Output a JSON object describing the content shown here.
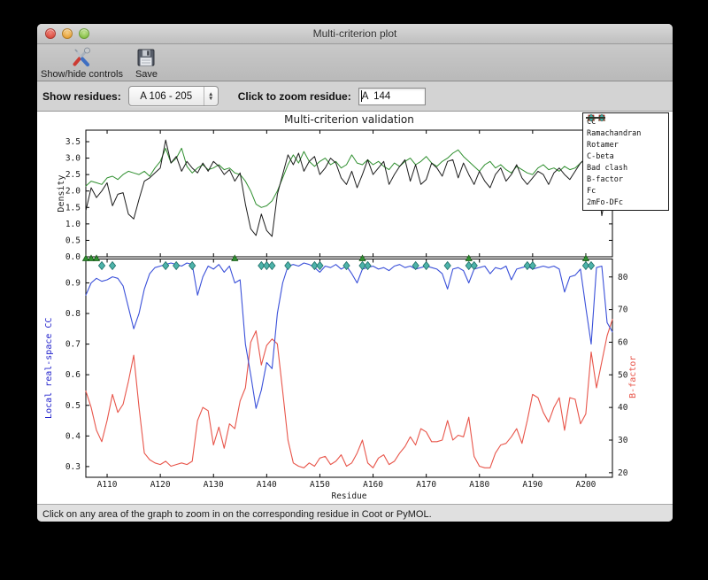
{
  "window": {
    "title": "Multi-criterion plot"
  },
  "toolbar": {
    "show_hide_label": "Show/hide controls",
    "save_label": "Save"
  },
  "controls": {
    "show_residues_label": "Show residues:",
    "range_value": "A 106 - 205",
    "zoom_residue_label": "Click to zoom residue:",
    "zoom_residue_value": "A  144"
  },
  "status_bar": {
    "text": "Click on any area of the graph to zoom in on the corresponding residue in Coot or PyMOL."
  },
  "legend": [
    {
      "label": "CC",
      "symbol": "line",
      "color": "#3a50d9",
      "stroke": "#2638a8"
    },
    {
      "label": "Ramachandran",
      "symbol": "circle",
      "color": "#2e4bd8",
      "stroke": "#1a2f9e"
    },
    {
      "label": "Rotamer",
      "symbol": "triangle",
      "color": "#2f8f2f",
      "stroke": "#1d5c1d"
    },
    {
      "label": "C-beta",
      "symbol": "square",
      "color": "#cf3c30",
      "stroke": "#8f2017"
    },
    {
      "label": "Bad clash",
      "symbol": "diamond",
      "color": "#4db3aa",
      "stroke": "#1e6e66"
    },
    {
      "label": "B-factor",
      "symbol": "line",
      "color": "#ef6a5e",
      "stroke": "#ef6a5e"
    },
    {
      "label": "Fc",
      "symbol": "line",
      "color": "#2f8f2f",
      "stroke": "#2f8f2f"
    },
    {
      "label": "2mFo-DFc",
      "symbol": "line",
      "color": "#1c1c1c",
      "stroke": "#1c1c1c"
    }
  ],
  "chart_data": [
    {
      "type": "line",
      "title": "Multi-criterion validation",
      "ylabel": "Density",
      "x_start": 106,
      "x_end": 205,
      "xticks": [
        110,
        120,
        130,
        140,
        150,
        160,
        170,
        180,
        190,
        200
      ],
      "yticks": [
        0.0,
        0.5,
        1.0,
        1.5,
        2.0,
        2.5,
        3.0,
        3.5
      ],
      "ylim": [
        0,
        3.85
      ],
      "grid": false,
      "series": [
        {
          "name": "Fc",
          "color": "#2f8f2f",
          "values": [
            2.15,
            2.3,
            2.25,
            2.2,
            2.4,
            2.45,
            2.35,
            2.5,
            2.6,
            2.55,
            2.5,
            2.6,
            2.45,
            2.7,
            2.9,
            3.3,
            2.85,
            3.0,
            3.3,
            2.75,
            2.55,
            2.7,
            2.8,
            2.65,
            2.7,
            2.8,
            2.65,
            2.7,
            2.55,
            2.5,
            2.3,
            2.0,
            1.6,
            1.5,
            1.55,
            1.7,
            2.0,
            2.4,
            2.8,
            3.1,
            2.85,
            3.2,
            2.9,
            2.75,
            2.9,
            3.0,
            2.8,
            2.9,
            2.7,
            2.8,
            3.1,
            2.85,
            2.8,
            2.95,
            2.8,
            2.9,
            2.75,
            2.65,
            2.85,
            2.75,
            2.9,
            3.0,
            2.8,
            2.9,
            3.05,
            2.85,
            2.75,
            2.9,
            3.0,
            3.15,
            3.25,
            3.05,
            2.9,
            2.75,
            2.6,
            2.8,
            2.9,
            2.7,
            2.8,
            2.65,
            2.55,
            2.75,
            2.65,
            2.55,
            2.5,
            2.7,
            2.8,
            2.65,
            2.7,
            2.6,
            2.75,
            2.65,
            2.7,
            2.85,
            3.0,
            3.1,
            2.85,
            2.45,
            2.9,
            2.75
          ]
        },
        {
          "name": "2mFo-DFc",
          "color": "#1c1c1c",
          "values": [
            1.4,
            2.1,
            1.8,
            2.0,
            2.25,
            1.55,
            1.9,
            1.95,
            1.3,
            1.15,
            1.75,
            2.3,
            2.4,
            2.55,
            2.7,
            3.55,
            2.85,
            3.05,
            2.6,
            2.9,
            2.7,
            2.55,
            2.85,
            2.6,
            2.9,
            2.75,
            2.5,
            2.65,
            2.3,
            2.55,
            1.6,
            0.85,
            0.65,
            1.3,
            0.8,
            0.62,
            1.9,
            2.5,
            3.1,
            2.8,
            3.15,
            2.6,
            2.9,
            3.05,
            2.5,
            2.7,
            3.0,
            2.85,
            2.4,
            2.2,
            2.6,
            2.1,
            2.5,
            2.95,
            2.5,
            2.7,
            2.9,
            2.2,
            2.5,
            2.75,
            2.95,
            2.3,
            2.8,
            2.2,
            2.35,
            2.85,
            2.7,
            2.45,
            2.9,
            2.95,
            2.4,
            2.85,
            2.5,
            2.2,
            2.6,
            2.3,
            2.1,
            2.5,
            2.7,
            2.3,
            2.5,
            2.8,
            2.4,
            2.2,
            2.4,
            2.6,
            2.5,
            2.2,
            2.55,
            2.7,
            2.5,
            2.35,
            2.6,
            2.85,
            3.0,
            2.9,
            2.6,
            1.25,
            2.1,
            1.45
          ]
        }
      ]
    },
    {
      "type": "line",
      "xlabel": "Residue",
      "x_start": 106,
      "x_end": 205,
      "xticks": [
        110,
        120,
        130,
        140,
        150,
        160,
        170,
        180,
        190,
        200
      ],
      "xtick_labels": [
        "A110",
        "A120",
        "A130",
        "A140",
        "A150",
        "A160",
        "A170",
        "A180",
        "A190",
        "A200"
      ],
      "left_axis": {
        "label": "Local real-space CC",
        "color": "#2222cc",
        "ticks": [
          0.3,
          0.4,
          0.5,
          0.6,
          0.7,
          0.8,
          0.9
        ],
        "lim": [
          0.265,
          0.978
        ]
      },
      "right_axis": {
        "label": "B-factor",
        "color": "#e8554a",
        "ticks": [
          20,
          30,
          40,
          50,
          60,
          70,
          80
        ],
        "lim": [
          18.6,
          85.5
        ]
      },
      "grid": false,
      "series": [
        {
          "name": "B-factor",
          "axis": "right",
          "color": "#e8554a",
          "values": [
            45,
            40,
            33,
            29.5,
            36,
            44,
            38.5,
            41,
            48,
            56,
            40,
            26,
            24,
            23,
            22.5,
            23.5,
            22,
            22.5,
            23,
            22.5,
            23.5,
            36,
            40,
            39,
            28.5,
            34,
            27.5,
            35,
            33.5,
            42,
            46,
            60,
            63.5,
            53,
            59,
            61,
            59.5,
            45,
            30,
            23,
            22,
            21.5,
            23,
            22,
            24.5,
            25,
            22.5,
            23.5,
            25.5,
            22,
            23,
            26,
            30,
            23,
            21.5,
            24.5,
            25.5,
            22.5,
            23.5,
            26,
            28,
            31,
            28.5,
            33.5,
            32.5,
            29.5,
            29.5,
            30,
            36,
            30,
            31.5,
            31,
            37,
            25,
            22,
            21.5,
            21.5,
            26,
            28.5,
            29,
            31,
            33.5,
            29,
            36,
            44,
            43,
            38.5,
            35.5,
            40,
            43,
            33,
            43,
            42.5,
            35,
            38,
            57,
            46,
            54,
            62,
            67
          ]
        },
        {
          "name": "CC",
          "axis": "left",
          "color": "#3a50d9",
          "values": [
            0.86,
            0.9,
            0.915,
            0.905,
            0.91,
            0.92,
            0.915,
            0.89,
            0.82,
            0.75,
            0.8,
            0.88,
            0.93,
            0.95,
            0.955,
            0.96,
            0.965,
            0.96,
            0.955,
            0.965,
            0.96,
            0.86,
            0.92,
            0.955,
            0.945,
            0.96,
            0.935,
            0.955,
            0.9,
            0.91,
            0.7,
            0.6,
            0.49,
            0.55,
            0.64,
            0.62,
            0.8,
            0.9,
            0.955,
            0.96,
            0.955,
            0.965,
            0.96,
            0.95,
            0.935,
            0.955,
            0.95,
            0.96,
            0.945,
            0.955,
            0.93,
            0.9,
            0.945,
            0.95,
            0.955,
            0.945,
            0.95,
            0.94,
            0.955,
            0.96,
            0.95,
            0.955,
            0.945,
            0.95,
            0.955,
            0.95,
            0.945,
            0.93,
            0.88,
            0.945,
            0.95,
            0.94,
            0.9,
            0.945,
            0.95,
            0.955,
            0.93,
            0.95,
            0.945,
            0.955,
            0.91,
            0.945,
            0.95,
            0.955,
            0.945,
            0.95,
            0.955,
            0.95,
            0.955,
            0.945,
            0.87,
            0.92,
            0.925,
            0.945,
            0.82,
            0.7,
            0.95,
            0.955,
            0.77,
            0.74
          ]
        }
      ],
      "markers": [
        {
          "name": "Rotamer",
          "shape": "triangle",
          "fill": "#2f8f2f",
          "stroke": "#1d5c1d",
          "residues": [
            106,
            107,
            108,
            134,
            158,
            178,
            200
          ]
        },
        {
          "name": "Bad clash",
          "shape": "diamond",
          "fill": "#4db3aa",
          "stroke": "#1e6e66",
          "residues": [
            109,
            111,
            121,
            123,
            126,
            139,
            140,
            141,
            144,
            149,
            150,
            155,
            158,
            159,
            168,
            170,
            174,
            178,
            179,
            189,
            190,
            200,
            201
          ]
        }
      ]
    }
  ]
}
